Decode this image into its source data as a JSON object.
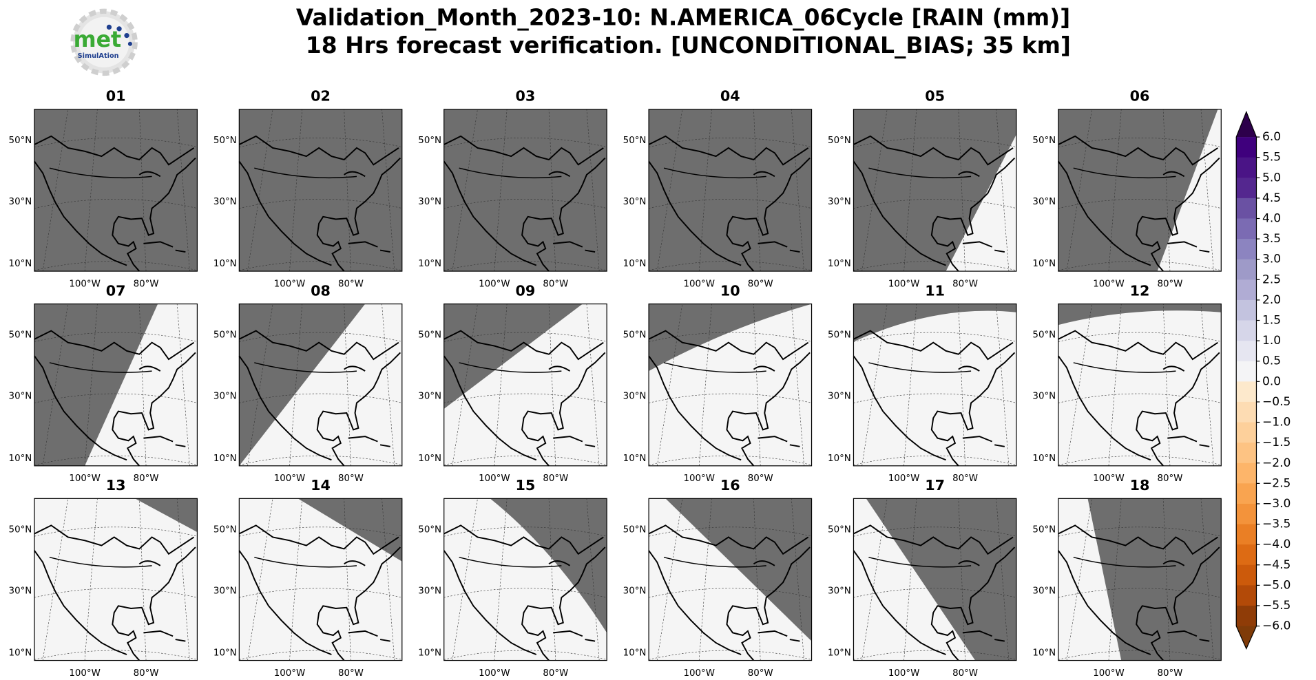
{
  "header": {
    "title": "Validation_Month_2023-10: N.AMERICA_06Cycle [RAIN (mm)]",
    "subtitle": "18 Hrs forecast verification. [UNCONDITIONAL_BIAS; 35 km]"
  },
  "logo": {
    "text": "met",
    "sub": "SimulAtion"
  },
  "panels": [
    "01",
    "02",
    "03",
    "04",
    "05",
    "06",
    "07",
    "08",
    "09",
    "10",
    "11",
    "12",
    "13",
    "14",
    "15",
    "16",
    "17",
    "18"
  ],
  "lat_labels": [
    "50°N",
    "30°N",
    "10°N"
  ],
  "lon_labels": [
    "100°W",
    "80°W"
  ],
  "colorbar": {
    "ticks": [
      {
        "value": 6.0,
        "label": "6.0"
      },
      {
        "value": 5.5,
        "label": "5.5"
      },
      {
        "value": 5.0,
        "label": "5.0"
      },
      {
        "value": 4.5,
        "label": "4.5"
      },
      {
        "value": 4.0,
        "label": "4.0"
      },
      {
        "value": 3.5,
        "label": "3.5"
      },
      {
        "value": 3.0,
        "label": "3.0"
      },
      {
        "value": 2.5,
        "label": "2.5"
      },
      {
        "value": 2.0,
        "label": "2.0"
      },
      {
        "value": 1.5,
        "label": "1.5"
      },
      {
        "value": 1.0,
        "label": "1.0"
      },
      {
        "value": 0.5,
        "label": "0.5"
      },
      {
        "value": 0.0,
        "label": "0.0"
      },
      {
        "value": -0.5,
        "label": "−0.5"
      },
      {
        "value": -1.0,
        "label": "−1.0"
      },
      {
        "value": -1.5,
        "label": "−1.5"
      },
      {
        "value": -2.0,
        "label": "−2.0"
      },
      {
        "value": -2.5,
        "label": "−2.5"
      },
      {
        "value": -3.0,
        "label": "−3.0"
      },
      {
        "value": -3.5,
        "label": "−3.5"
      },
      {
        "value": -4.0,
        "label": "−4.0"
      },
      {
        "value": -4.5,
        "label": "−4.5"
      },
      {
        "value": -5.0,
        "label": "−5.0"
      },
      {
        "value": -5.5,
        "label": "−5.5"
      },
      {
        "value": -6.0,
        "label": "−6.0"
      }
    ],
    "colors": [
      "#3f007d",
      "#4a1486",
      "#54278f",
      "#6a51a3",
      "#7b6bb3",
      "#8c84c0",
      "#9e9ac8",
      "#b0acd4",
      "#c3c3df",
      "#d6d6e9",
      "#e6e6f1",
      "#f4f4f6",
      "#fde9cc",
      "#fddcb3",
      "#fdd09b",
      "#fdc383",
      "#fdb56a",
      "#f9a450",
      "#f3933b",
      "#ea7f25",
      "#dd6b14",
      "#cc5a0b",
      "#b34a08",
      "#8f3c07"
    ],
    "over_color": "#2d004b",
    "under_color": "#7f3b08"
  }
}
